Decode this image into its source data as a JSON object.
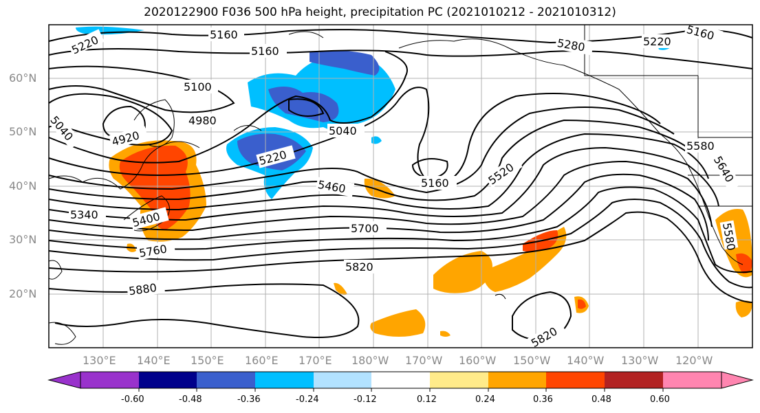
{
  "title": "2020122900 F036 500 hPa height, precipitation PC (2021010212 - 2021010312)",
  "lat_labels": [
    "60°N",
    "50°N",
    "40°N",
    "30°N",
    "20°N"
  ],
  "lon_labels": [
    "130°E",
    "140°E",
    "150°E",
    "160°E",
    "170°E",
    "180°W",
    "170°W",
    "160°W",
    "150°W",
    "140°W",
    "130°W",
    "120°W"
  ],
  "contour_labels": [
    "5160",
    "5220",
    "5160",
    "5280",
    "5220",
    "5160",
    "5100",
    "4980",
    "4920",
    "5040",
    "5040",
    "5220",
    "5460",
    "5160",
    "5520",
    "5580",
    "5640",
    "5340",
    "5400",
    "5760",
    "5700",
    "5820",
    "5880",
    "5820",
    "5580"
  ],
  "colorbar": {
    "colors": [
      "#9932cc",
      "#00008b",
      "#3a5fcd",
      "#00bfff",
      "#b2e2ff",
      "#ffffff",
      "#ffeb8a",
      "#ffa500",
      "#ff4500",
      "#b22222",
      "#ff85b0"
    ],
    "tick_labels": [
      "-0.60",
      "-0.48",
      "-0.36",
      "-0.24",
      "-0.12",
      "0.12",
      "0.24",
      "0.36",
      "0.48",
      "0.60"
    ]
  }
}
